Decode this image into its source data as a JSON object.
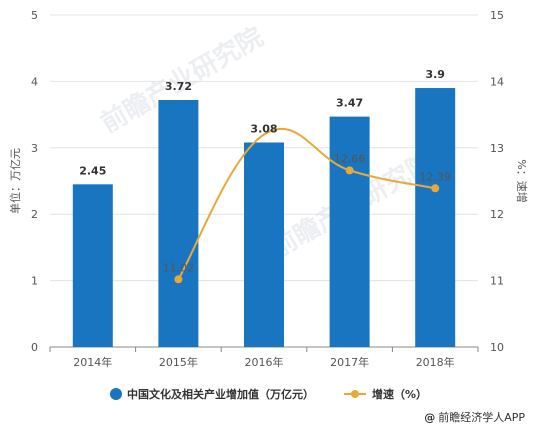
{
  "chart_data": {
    "type": "bar+line",
    "categories": [
      "2014年",
      "2015年",
      "2016年",
      "2017年",
      "2018年"
    ],
    "series": [
      {
        "name": "中国文化及相关产业增加值（万亿元）",
        "type": "bar",
        "axis": "left",
        "values": [
          2.45,
          3.72,
          3.08,
          3.47,
          3.9
        ],
        "color": "#1a75c1"
      },
      {
        "name": "增速（%）",
        "type": "line",
        "axis": "right",
        "values": [
          null,
          11.02,
          13.2,
          12.66,
          12.39
        ],
        "point_labels": [
          "",
          "11.02",
          "",
          "12.66",
          "12.39"
        ],
        "color": "#e8a93a"
      }
    ],
    "bar_labels": [
      "2.45",
      "3.72",
      "3.08",
      "3.47",
      "3.9"
    ],
    "ylabel_left": "单位：万亿元",
    "ylabel_right": "%：速增",
    "ylim_left": [
      0,
      5
    ],
    "ylim_right": [
      10,
      15
    ],
    "yticks_left": [
      "0",
      "1",
      "2",
      "3",
      "4",
      "5"
    ],
    "yticks_right": [
      "10",
      "11",
      "12",
      "13",
      "14",
      "15"
    ],
    "grid": true,
    "legend_position": "bottom"
  },
  "watermark": "前瞻产业研究院",
  "credit": {
    "at": "@",
    "text": "前瞻经济学人APP"
  }
}
